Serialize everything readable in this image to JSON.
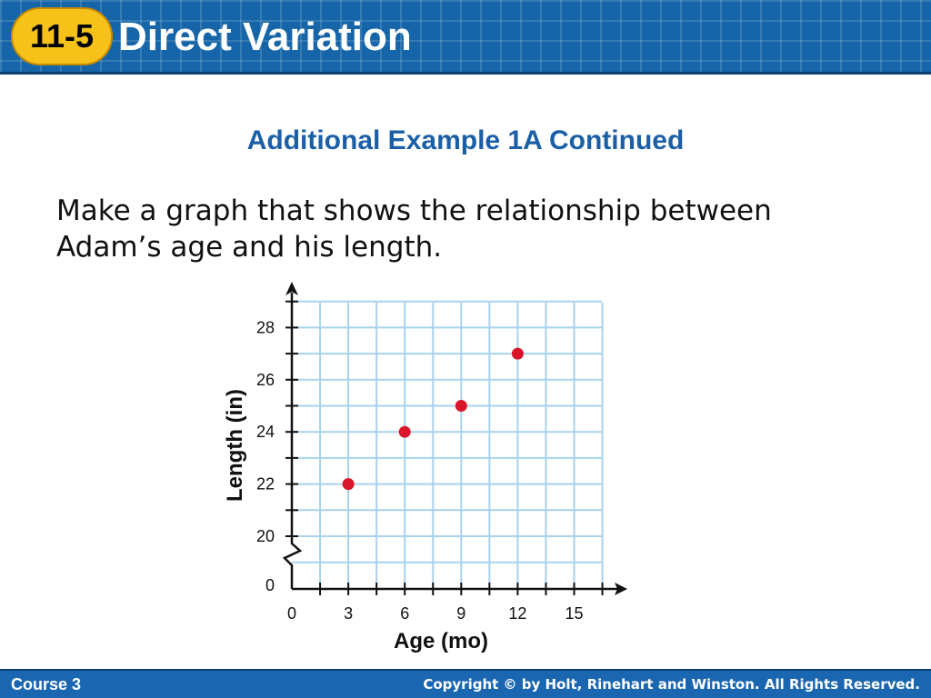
{
  "header": {
    "badge": "11-5",
    "title": "Direct Variation"
  },
  "slide": {
    "subtitle": "Additional Example 1A Continued",
    "instruction_line1": "Make a graph that shows the relationship between",
    "instruction_line2": "Adam’s age and his length."
  },
  "chart_data": {
    "type": "scatter",
    "xlabel": "Age (mo)",
    "ylabel": "Length (in)",
    "x_ticks": [
      0,
      3,
      6,
      9,
      12,
      15
    ],
    "y_ticks": [
      0,
      20,
      22,
      24,
      26,
      28
    ],
    "y_axis_break": "between 0 and 20",
    "xlim": [
      0,
      16.5
    ],
    "ylim": [
      20,
      29
    ],
    "grid": true,
    "points": [
      {
        "x": 3,
        "y": 22
      },
      {
        "x": 6,
        "y": 24
      },
      {
        "x": 9,
        "y": 25
      },
      {
        "x": 12,
        "y": 27
      }
    ],
    "colors": {
      "point": "#d9142b",
      "grid": "#a9d2ee",
      "axis": "#111111"
    }
  },
  "footer": {
    "course": "Course 3",
    "copyright": "Copyright © by Holt, Rinehart and Winston. All Rights Reserved."
  }
}
